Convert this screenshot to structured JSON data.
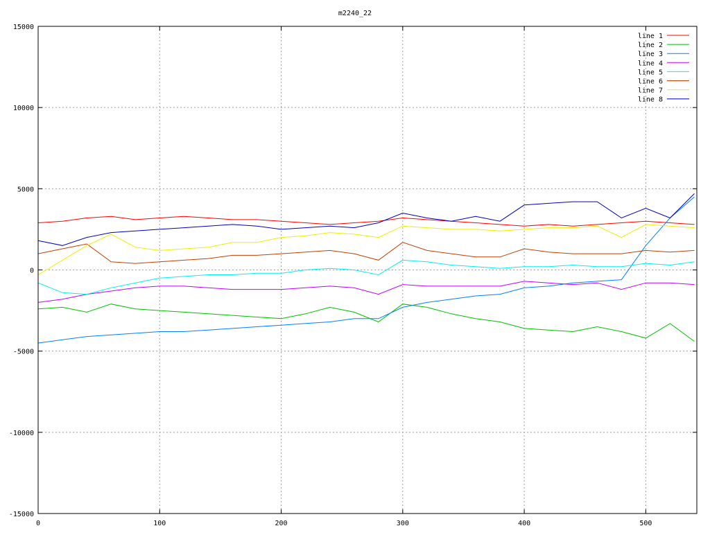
{
  "chart_data": {
    "type": "line",
    "title": "m2240_22",
    "xlabel": "",
    "ylabel": "",
    "xlim": [
      0,
      542
    ],
    "ylim": [
      -15000,
      15000
    ],
    "xticks": [
      0,
      100,
      200,
      300,
      400,
      500
    ],
    "yticks": [
      -15000,
      -10000,
      -5000,
      0,
      5000,
      10000,
      15000
    ],
    "grid": true,
    "legend_position": "top-right",
    "x": [
      0,
      20,
      40,
      60,
      80,
      100,
      120,
      140,
      160,
      180,
      200,
      220,
      240,
      260,
      280,
      300,
      320,
      340,
      360,
      380,
      400,
      420,
      440,
      460,
      480,
      500,
      520,
      540
    ],
    "series": [
      {
        "name": "line 1",
        "color": "#ff0000",
        "values": [
          2900,
          3000,
          3200,
          3300,
          3100,
          3200,
          3300,
          3200,
          3100,
          3100,
          3000,
          2900,
          2800,
          2900,
          3000,
          3200,
          3100,
          3000,
          2900,
          2800,
          2700,
          2800,
          2700,
          2800,
          2900,
          3000,
          2900,
          2800
        ]
      },
      {
        "name": "line 2",
        "color": "#00c000",
        "values": [
          -2400,
          -2300,
          -2600,
          -2100,
          -2400,
          -2500,
          -2600,
          -2700,
          -2800,
          -2900,
          -3000,
          -2700,
          -2300,
          -2600,
          -3200,
          -2100,
          -2300,
          -2700,
          -3000,
          -3200,
          -3600,
          -3700,
          -3800,
          -3500,
          -3800,
          -4200,
          -3300,
          -4400
        ]
      },
      {
        "name": "line 3",
        "color": "#0080ff",
        "values": [
          -4500,
          -4300,
          -4100,
          -4000,
          -3900,
          -3800,
          -3800,
          -3700,
          -3600,
          -3500,
          -3400,
          -3300,
          -3200,
          -3000,
          -3000,
          -2300,
          -2000,
          -1800,
          -1600,
          -1500,
          -1100,
          -1000,
          -800,
          -700,
          -600,
          1500,
          3200,
          4500
        ]
      },
      {
        "name": "line 4",
        "color": "#c000ff",
        "values": [
          -2000,
          -1800,
          -1500,
          -1300,
          -1100,
          -1000,
          -1000,
          -1100,
          -1200,
          -1200,
          -1200,
          -1100,
          -1000,
          -1100,
          -1500,
          -900,
          -1000,
          -1000,
          -1000,
          -1000,
          -700,
          -800,
          -900,
          -800,
          -1200,
          -800,
          -800,
          -900
        ]
      },
      {
        "name": "line 5",
        "color": "#00eeee",
        "values": [
          -800,
          -1400,
          -1500,
          -1100,
          -800,
          -500,
          -400,
          -300,
          -300,
          -200,
          -200,
          0,
          100,
          0,
          -300,
          600,
          500,
          300,
          200,
          100,
          200,
          200,
          300,
          200,
          200,
          400,
          300,
          500
        ]
      },
      {
        "name": "line 6",
        "color": "#c04000",
        "values": [
          1000,
          1300,
          1600,
          500,
          400,
          500,
          600,
          700,
          900,
          900,
          1000,
          1100,
          1200,
          1000,
          600,
          1700,
          1200,
          1000,
          800,
          800,
          1300,
          1100,
          1000,
          1000,
          1000,
          1200,
          1100,
          1200
        ]
      },
      {
        "name": "line 7",
        "color": "#eeee00",
        "values": [
          -300,
          600,
          1500,
          2200,
          1400,
          1200,
          1300,
          1400,
          1700,
          1700,
          2000,
          2100,
          2300,
          2200,
          2000,
          2700,
          2600,
          2500,
          2500,
          2400,
          2500,
          2600,
          2600,
          2700,
          2000,
          2800,
          2700,
          2600
        ]
      },
      {
        "name": "line 8",
        "color": "#0000c0",
        "values": [
          1800,
          1500,
          2000,
          2300,
          2400,
          2500,
          2600,
          2700,
          2800,
          2700,
          2500,
          2600,
          2700,
          2600,
          2900,
          3500,
          3200,
          3000,
          3300,
          3000,
          4000,
          4100,
          4200,
          4200,
          3200,
          3800,
          3200,
          4700
        ]
      }
    ]
  }
}
